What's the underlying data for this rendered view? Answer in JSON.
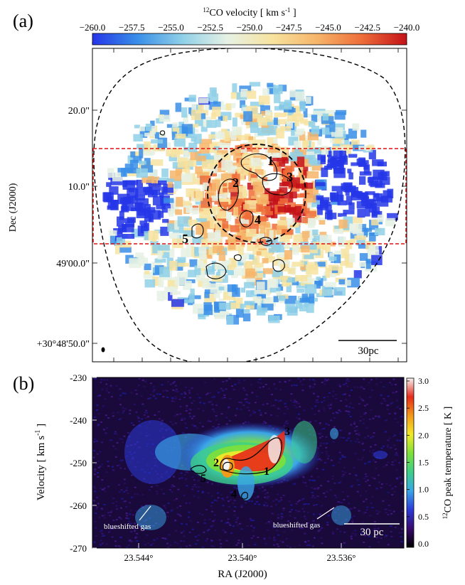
{
  "chart_data": [
    {
      "panel_label": "(a)",
      "type": "heatmap",
      "title": "12CO velocity [ km s-1 ]",
      "colorbar": {
        "label_sup": "12",
        "label_main": "CO velocity [ km s",
        "label_exp": "-1",
        "label_close": " ]",
        "range": [
          -260.0,
          -240.0
        ],
        "ticks": [
          "−260.0",
          "−257.5",
          "−255.0",
          "−252.5",
          "−250.0",
          "−247.5",
          "−245.0",
          "−242.5",
          "−240.0"
        ],
        "colormap": [
          "#2536e8",
          "#3a8ee8",
          "#8fd0e8",
          "#e6f1e4",
          "#f7e3a0",
          "#f6b56a",
          "#ee6d3a",
          "#c41218"
        ]
      },
      "ylabel": "Dec (J2000)",
      "yticks": [
        "20.0\"",
        "10.0\"",
        "49'00.0\"",
        "+30°48'50.0\""
      ],
      "region_labels": [
        "1",
        "2",
        "3",
        "4",
        "5"
      ],
      "scalebar": "30pc"
    },
    {
      "panel_label": "(b)",
      "type": "heatmap",
      "xlabel": "RA (J2000)",
      "xticks": [
        "23.544°",
        "23.540°",
        "23.536°"
      ],
      "ylabel_main": "Velocity [ km s",
      "ylabel_exp": "-1",
      "ylabel_close": " ]",
      "yticks": [
        "-230",
        "-240",
        "-250",
        "-260",
        "-270"
      ],
      "ylim": [
        -270,
        -230
      ],
      "colorbar": {
        "label_sup": "12",
        "label_main": "CO peak temperature [ K ]",
        "range": [
          0.0,
          3.0
        ],
        "ticks": [
          "3.0",
          "2.5",
          "2.0",
          "1.5",
          "1.0",
          "0.5",
          "0.0"
        ],
        "colormap": [
          "#000000",
          "#3a0a6e",
          "#2c3ad8",
          "#3aa6e8",
          "#3ccf8a",
          "#7ee03a",
          "#f2ea2a",
          "#f29a1a",
          "#e82a1a",
          "#f4f4f4"
        ]
      },
      "region_labels": [
        "1",
        "2",
        "3",
        "4",
        "5"
      ],
      "annotations": [
        "blueshifted gas",
        "blueshifted gas"
      ],
      "scalebar": "30 pc"
    }
  ]
}
